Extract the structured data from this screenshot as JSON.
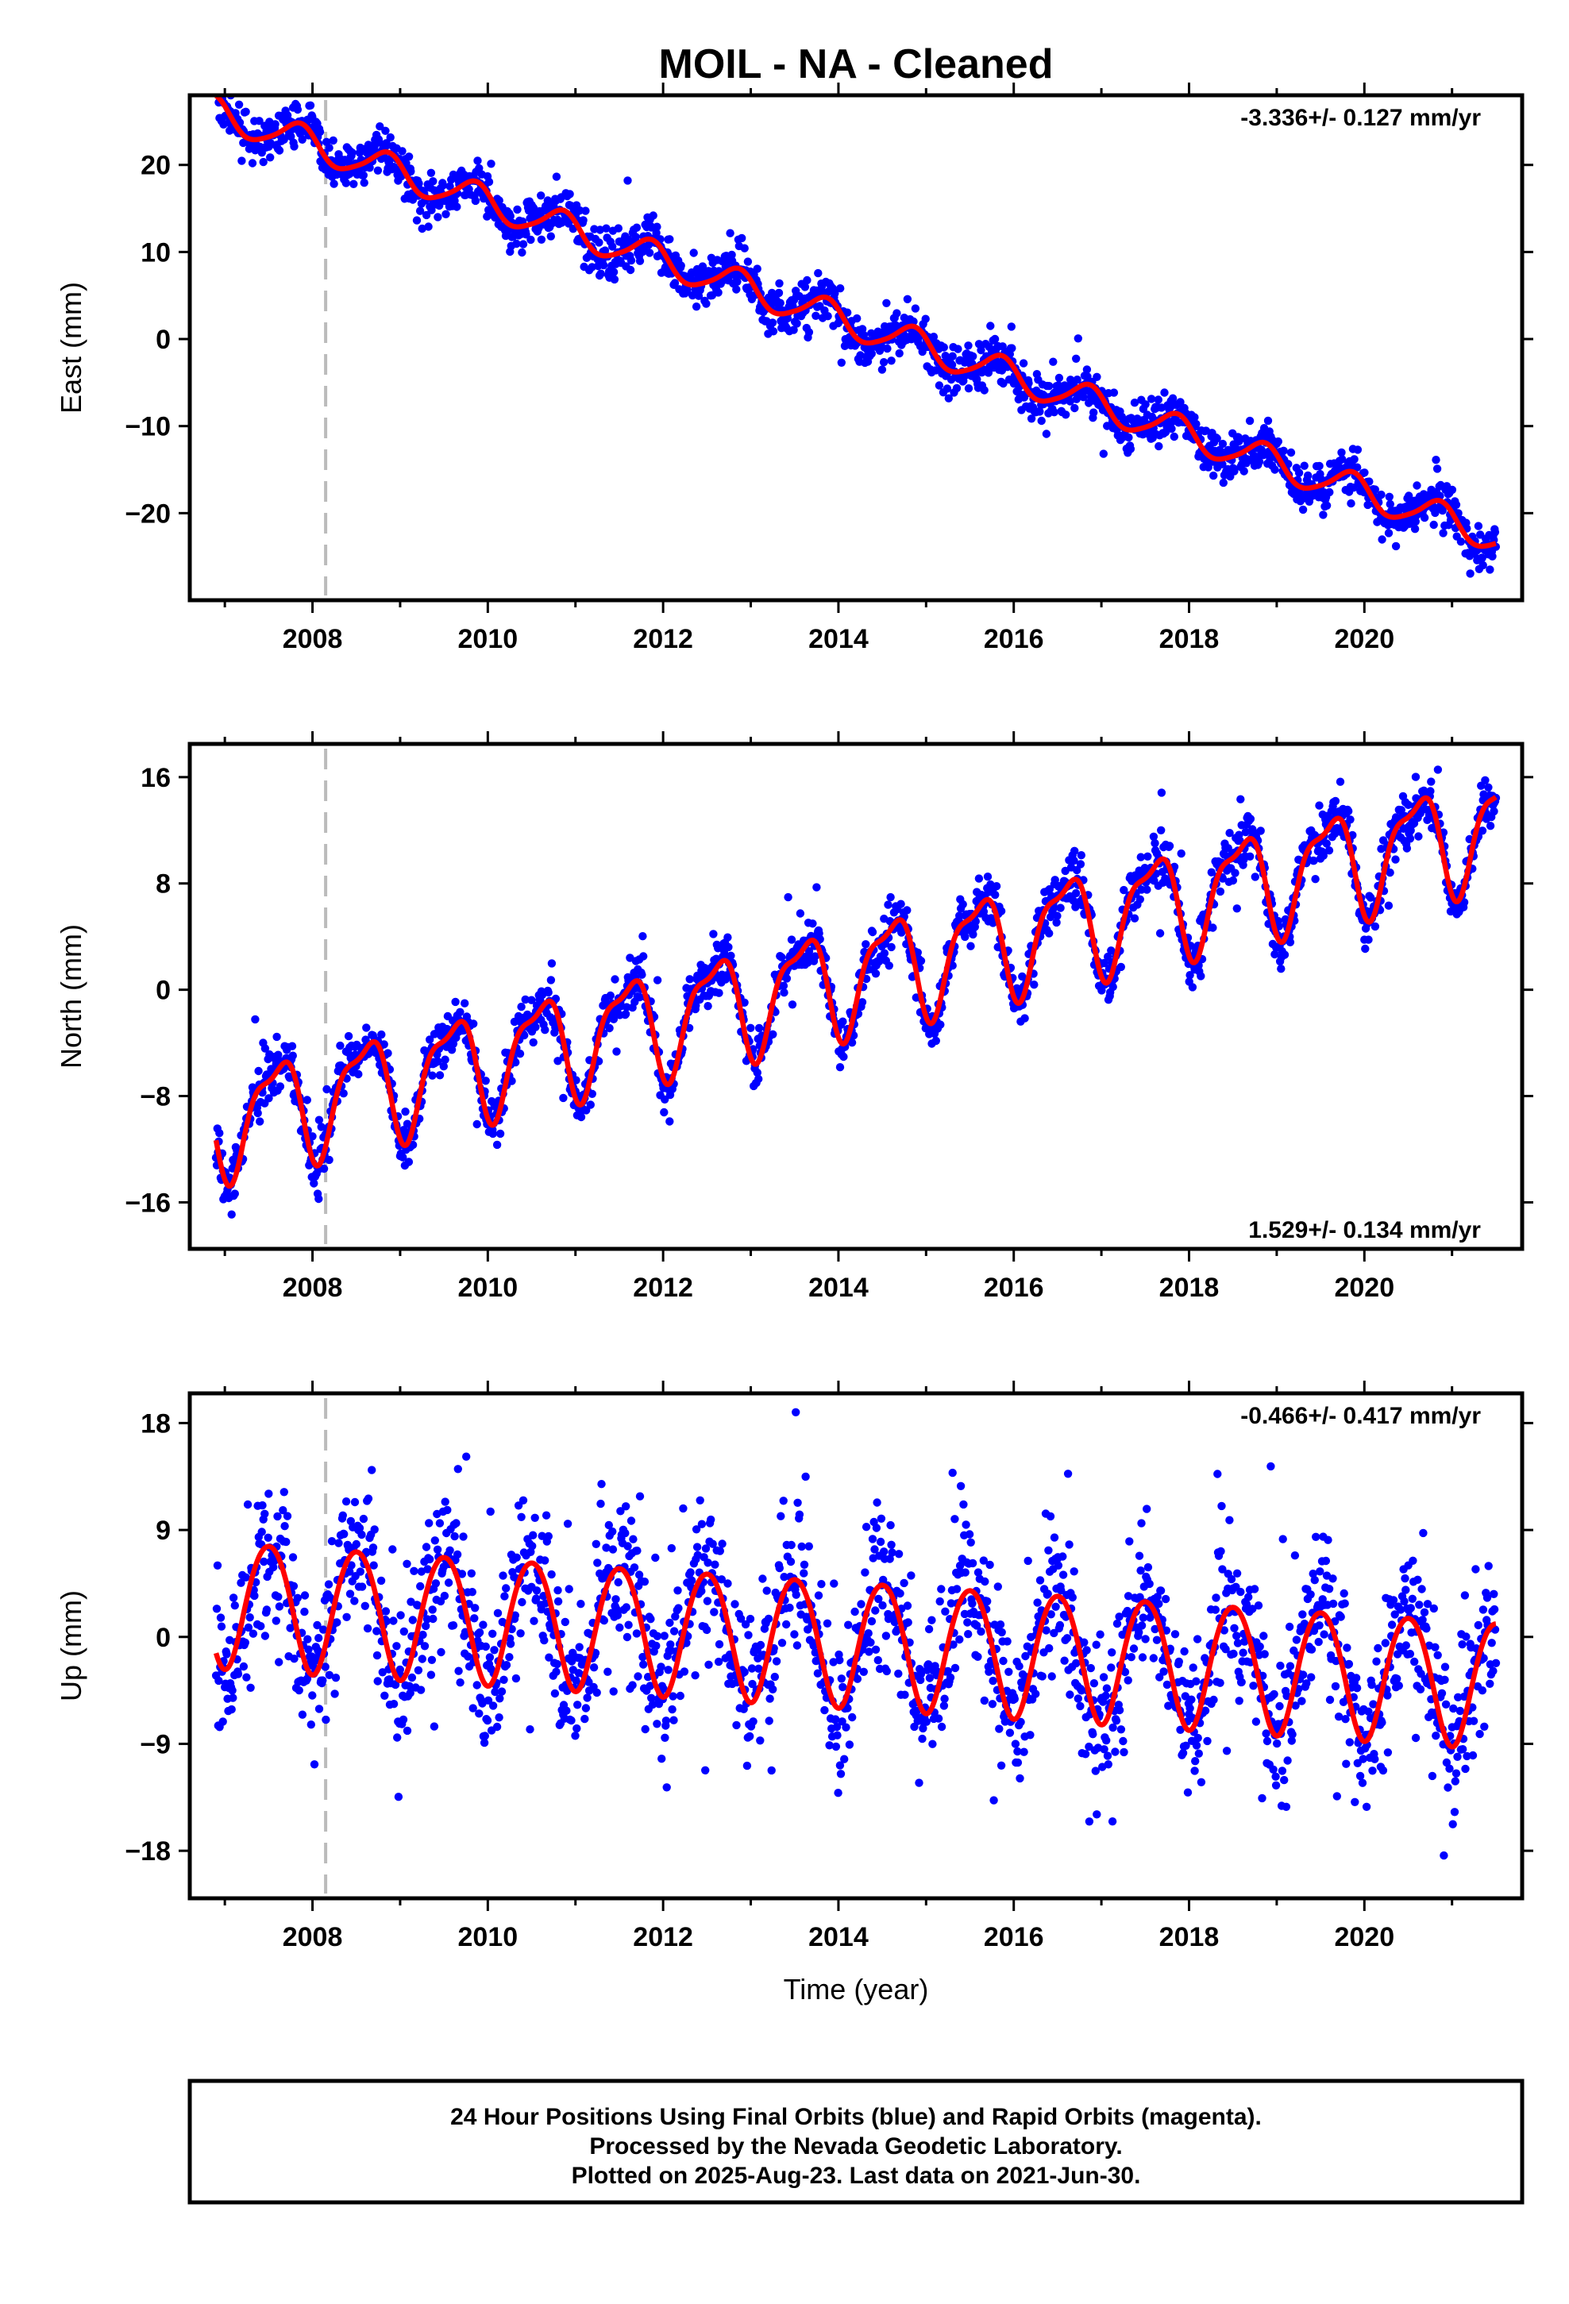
{
  "title": "MOIL  - NA - Cleaned",
  "xlabel": "Time (year)",
  "footer": {
    "lines": [
      "24 Hour Positions Using Final Orbits (blue) and Rapid Orbits (magenta).",
      "Processed by the Nevada Geodetic Laboratory.",
      "Plotted on 2025-Aug-23. Last data on 2021-Jun-30."
    ]
  },
  "colors": {
    "points": "#0000ff",
    "model": "#ff0000",
    "event_line": "#bbbbbb",
    "frame": "#000000"
  },
  "chart_data": [
    {
      "type": "scatter",
      "name": "east",
      "ylabel": "East (mm)",
      "rate_text": "-3.336+/- 0.127 mm/yr",
      "rate_position": "top-right",
      "xlim": [
        2006.6,
        2021.8
      ],
      "ylim": [
        -30,
        28
      ],
      "xticks": [
        2008,
        2010,
        2012,
        2014,
        2016,
        2018,
        2020
      ],
      "yticks": [
        20,
        10,
        0,
        -10,
        -20
      ],
      "event_line_x": 2008.15,
      "model": {
        "t0": 2006.9,
        "t1": 2021.5,
        "offset": 26.0,
        "rate": -3.336,
        "annual_amp": 1.8,
        "annual_phase": 2.6,
        "semi_amp": 0.3
      },
      "scatter_noise": 1.3,
      "outlier_rate": 0.01,
      "series": [
        {
          "name": "Final Orbits",
          "color": "#0000ff"
        },
        {
          "name": "Model",
          "color": "#ff0000"
        }
      ]
    },
    {
      "type": "scatter",
      "name": "north",
      "ylabel": "North (mm)",
      "rate_text": "1.529+/- 0.134 mm/yr",
      "rate_position": "bottom-right",
      "xlim": [
        2006.6,
        2021.8
      ],
      "ylim": [
        -19.5,
        18.5
      ],
      "xticks": [
        2008,
        2010,
        2012,
        2014,
        2016,
        2018,
        2020
      ],
      "yticks": [
        16,
        8,
        0,
        -8,
        -16
      ],
      "event_line_x": 2008.15,
      "model": {
        "t0": 2006.9,
        "t1": 2021.5,
        "offset": -10.0,
        "rate": 1.529,
        "annual_amp": 3.8,
        "annual_phase": 4.2,
        "semi_amp": 1.3
      },
      "scatter_noise": 1.0,
      "outlier_rate": 0.01,
      "series": [
        {
          "name": "Final Orbits",
          "color": "#0000ff"
        },
        {
          "name": "Model",
          "color": "#ff0000"
        }
      ]
    },
    {
      "type": "scatter",
      "name": "up",
      "ylabel": "Up (mm)",
      "rate_text": "-0.466+/- 0.417 mm/yr",
      "rate_position": "top-right",
      "xlim": [
        2006.6,
        2021.8
      ],
      "ylim": [
        -22,
        20.5
      ],
      "xticks": [
        2008,
        2010,
        2012,
        2014,
        2016,
        2018,
        2020
      ],
      "yticks": [
        18,
        9,
        0,
        -9,
        -18
      ],
      "event_line_x": 2008.15,
      "model": {
        "t0": 2006.9,
        "t1": 2021.5,
        "offset": 3.0,
        "rate": -0.466,
        "annual_amp": 5.3,
        "annual_phase": 4.7,
        "semi_amp": 0.4
      },
      "scatter_noise": 3.3,
      "outlier_rate": 0.015,
      "series": [
        {
          "name": "Final Orbits",
          "color": "#0000ff"
        },
        {
          "name": "Model",
          "color": "#ff0000"
        }
      ]
    }
  ]
}
